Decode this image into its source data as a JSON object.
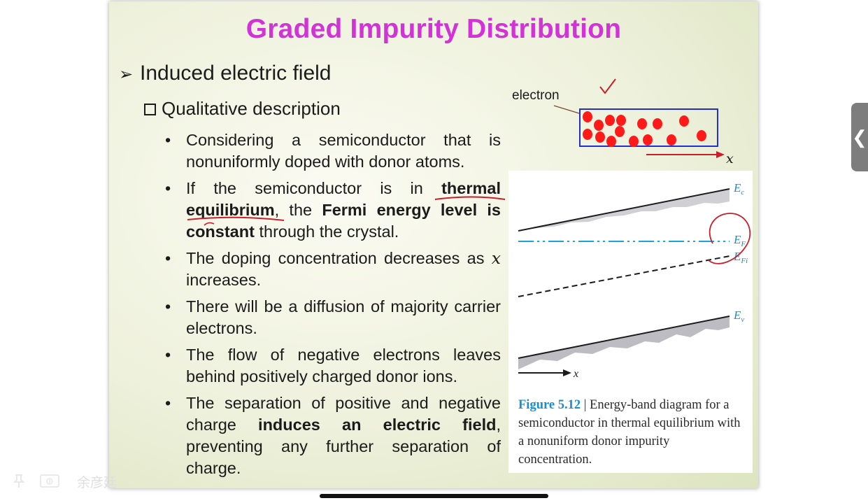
{
  "slide": {
    "title": "Graded Impurity Distribution",
    "level1": "Induced electric field",
    "level2": "Qualitative description",
    "bullets": [
      [
        "Considering a semiconductor that is nonuniformly doped with donor atoms."
      ],
      [
        "If the semiconductor is in ",
        "thermal equilibrium",
        ", the ",
        "Fermi energy level is constant",
        " through the crystal."
      ],
      [
        "The doping concentration decreases as ",
        "x",
        " increases."
      ],
      [
        "There will be a diffusion of majority carrier electrons."
      ],
      [
        "The flow of negative electrons leaves behind positively charged donor ions."
      ],
      [
        "The separation of positive and negative charge ",
        "induces an electric field",
        ", preventing any further separation of charge."
      ]
    ]
  },
  "diagram": {
    "electron_label": "electron",
    "axis_label": "x",
    "band_labels": {
      "ec": "E",
      "ec_sub": "c",
      "ef": "E",
      "ef_sub": "F",
      "efi": "E",
      "efi_sub": "Fi",
      "ev": "E",
      "ev_sub": "v"
    },
    "figure_axis_label": "x",
    "caption_fig": "Figure 5.12",
    "caption_text": " | Energy-band diagram for a semiconductor in thermal equilibrium with a nonuniform donor impurity concentration.",
    "colors": {
      "electron": "#ff1a1a",
      "box": "#2230c8",
      "annotation": "#c8202a",
      "ef_line": "#1aa3dc"
    }
  },
  "ui": {
    "username": "余彦廷",
    "side_tab_glyph": "❮",
    "icons": [
      "pin-icon",
      "camera-icon",
      "chevron-left-icon"
    ]
  }
}
